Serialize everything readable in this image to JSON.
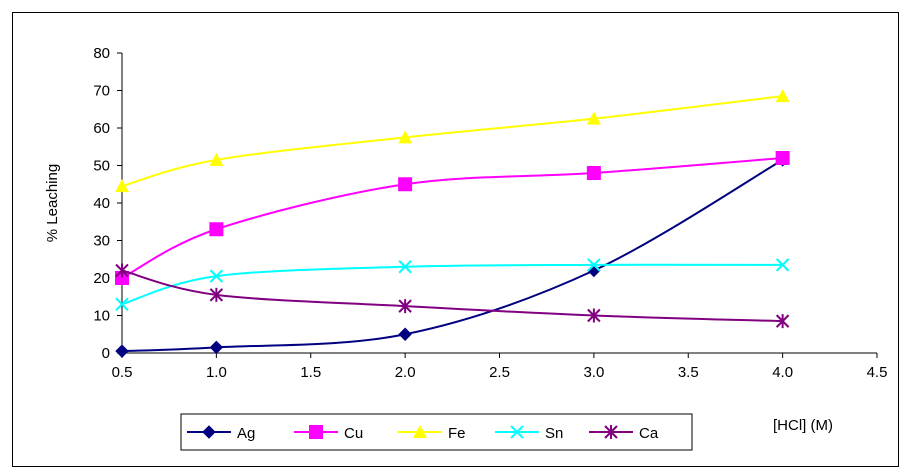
{
  "chart_data": {
    "type": "line",
    "title": "",
    "xlabel": "[HCl] (M)",
    "ylabel": "% Leaching",
    "xlim": [
      0.5,
      4.5
    ],
    "ylim": [
      0,
      80
    ],
    "xticks": [
      "0.5",
      "1.0",
      "1.5",
      "2.0",
      "2.5",
      "3.0",
      "3.5",
      "4.0",
      "4.5"
    ],
    "yticks": [
      "0",
      "10",
      "20",
      "30",
      "40",
      "50",
      "60",
      "70",
      "80"
    ],
    "grid": false,
    "legend_position": "bottom-center",
    "x": [
      0.5,
      1.0,
      2.0,
      3.0,
      4.0
    ],
    "series": [
      {
        "name": "Ag",
        "color": "#000080",
        "marker": "diamond",
        "values": [
          0.5,
          1.5,
          5,
          22,
          51.5
        ]
      },
      {
        "name": "Cu",
        "color": "#ff00ff",
        "marker": "square",
        "values": [
          20,
          33,
          45,
          48,
          52
        ]
      },
      {
        "name": "Fe",
        "color": "#ffff00",
        "marker": "triangle",
        "values": [
          44.5,
          51.5,
          57.5,
          62.5,
          68.5
        ]
      },
      {
        "name": "Sn",
        "color": "#00ffff",
        "marker": "x",
        "values": [
          13,
          20.5,
          23,
          23.5,
          23.5
        ]
      },
      {
        "name": "Ca",
        "color": "#800080",
        "marker": "star",
        "values": [
          22,
          15.5,
          12.5,
          10,
          8.5
        ]
      }
    ]
  }
}
